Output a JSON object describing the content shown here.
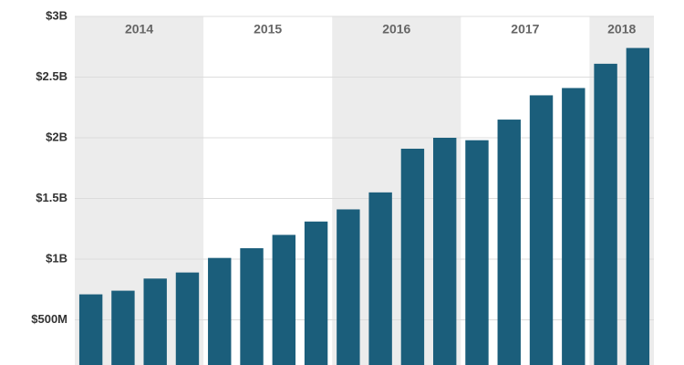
{
  "chart_data": {
    "type": "bar",
    "categories": [
      null,
      null,
      null,
      null,
      null,
      null,
      null,
      null,
      null,
      null,
      null,
      null,
      null,
      null,
      null,
      null,
      null,
      null
    ],
    "values": [
      710000000,
      740000000,
      840000000,
      890000000,
      1010000000,
      1090000000,
      1200000000,
      1310000000,
      1410000000,
      1550000000,
      1910000000,
      2000000000,
      1980000000,
      2150000000,
      2350000000,
      2410000000,
      2610000000,
      2740000000
    ],
    "color": "#1b5e7b",
    "groups": [
      {
        "name": "2014",
        "size": 4
      },
      {
        "name": "2015",
        "size": 4
      },
      {
        "name": "2016",
        "size": 4
      },
      {
        "name": "2017",
        "size": 4
      },
      {
        "name": "2018",
        "size": 2
      }
    ],
    "group_shading": "#ececec",
    "ylim": [
      0,
      3000000000
    ],
    "yticks": [
      {
        "value": 500000000,
        "label": "$500M"
      },
      {
        "value": 1000000000,
        "label": "$1B"
      },
      {
        "value": 1500000000,
        "label": "$1.5B"
      },
      {
        "value": 2000000000,
        "label": "$2B"
      },
      {
        "value": 2500000000,
        "label": "$2.5B"
      },
      {
        "value": 3000000000,
        "label": "$3B"
      }
    ],
    "grid": true
  }
}
